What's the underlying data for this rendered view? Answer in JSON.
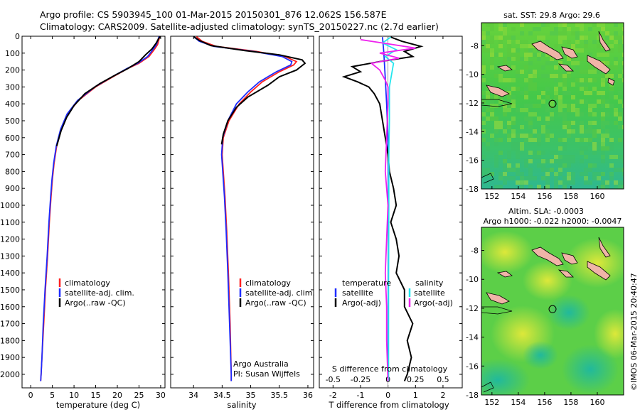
{
  "title": {
    "line1": "Argo profile: CS 5903945_100 01-Mar-2015 20150301_876 12.062S 156.587E",
    "line2": "Climatology: CARS2009. Satellite-adjusted climatology: synTS_20150227.nc (2.7d earlier)"
  },
  "colors": {
    "clim": "#ff2020",
    "sat": "#1e2cff",
    "argo": "#000000",
    "sal_sat": "#22e6ee",
    "sal_argo": "#ee22ee",
    "land": "#f0b4a8"
  },
  "chart_data": [
    {
      "type": "line",
      "name": "temperature-profile",
      "xlabel": "temperature (deg C)",
      "ylabel": "",
      "xlim": [
        -2,
        31
      ],
      "ylim": [
        2080,
        0
      ],
      "xticks": [
        "0",
        "5",
        "10",
        "15",
        "20",
        "25",
        "30"
      ],
      "xtick_values": [
        0,
        5,
        10,
        15,
        20,
        25,
        30
      ],
      "yticks": [
        "0",
        "100",
        "200",
        "300",
        "400",
        "500",
        "600",
        "700",
        "800",
        "900",
        "1000",
        "1100",
        "1200",
        "1300",
        "1400",
        "1500",
        "1600",
        "1700",
        "1800",
        "1900",
        "2000"
      ],
      "ytick_values": [
        0,
        100,
        200,
        300,
        400,
        500,
        600,
        700,
        800,
        900,
        1000,
        1100,
        1200,
        1300,
        1400,
        1500,
        1600,
        1700,
        1800,
        1900,
        2000
      ],
      "legend": [
        "climatology",
        "satellite-adj. clim.",
        "Argo(..raw -QC)"
      ],
      "series": [
        {
          "name": "climatology",
          "color": "clim",
          "points": [
            [
              29.8,
              2
            ],
            [
              29.6,
              20
            ],
            [
              29.3,
              50
            ],
            [
              28.5,
              80
            ],
            [
              27.3,
              120
            ],
            [
              25,
              160
            ],
            [
              22.5,
              190
            ],
            [
              19,
              240
            ],
            [
              15,
              300
            ],
            [
              11,
              380
            ],
            [
              8.5,
              460
            ],
            [
              7,
              550
            ],
            [
              6,
              650
            ],
            [
              5.4,
              750
            ],
            [
              5,
              850
            ],
            [
              4.7,
              950
            ],
            [
              4.3,
              1100
            ],
            [
              3.9,
              1300
            ],
            [
              3.4,
              1500
            ],
            [
              3,
              1700
            ],
            [
              2.6,
              1900
            ],
            [
              2.4,
              2000
            ],
            [
              2.3,
              2040
            ]
          ]
        },
        {
          "name": "satellite-adj. clim.",
          "color": "sat",
          "points": [
            [
              29.6,
              2
            ],
            [
              29.4,
              20
            ],
            [
              29,
              50
            ],
            [
              28.2,
              80
            ],
            [
              27,
              120
            ],
            [
              24.7,
              160
            ],
            [
              22.3,
              190
            ],
            [
              18.8,
              240
            ],
            [
              14.8,
              300
            ],
            [
              10.8,
              380
            ],
            [
              8.4,
              460
            ],
            [
              6.9,
              550
            ],
            [
              5.9,
              650
            ],
            [
              5.3,
              750
            ],
            [
              4.9,
              850
            ],
            [
              4.6,
              950
            ],
            [
              4.2,
              1100
            ],
            [
              3.8,
              1300
            ],
            [
              3.3,
              1500
            ],
            [
              2.9,
              1700
            ],
            [
              2.6,
              1900
            ],
            [
              2.4,
              2000
            ],
            [
              2.3,
              2040
            ]
          ]
        },
        {
          "name": "Argo(..raw -QC)",
          "color": "argo",
          "points": [
            [
              29.9,
              2
            ],
            [
              29.5,
              15
            ],
            [
              29,
              40
            ],
            [
              28,
              75
            ],
            [
              26.5,
              110
            ],
            [
              25,
              150
            ],
            [
              22.5,
              190
            ],
            [
              19.5,
              230
            ],
            [
              16,
              280
            ],
            [
              12.5,
              340
            ],
            [
              10,
              410
            ],
            [
              8.3,
              480
            ],
            [
              7,
              560
            ],
            [
              6,
              650
            ]
          ]
        }
      ]
    },
    {
      "type": "line",
      "name": "salinity-profile",
      "xlabel": "salinity",
      "xlim": [
        33.6,
        36.1
      ],
      "ylim": [
        2080,
        0
      ],
      "xticks": [
        "34",
        "34.5",
        "35",
        "35.5",
        "36"
      ],
      "xtick_values": [
        34,
        34.5,
        35,
        35.5,
        36
      ],
      "legend": [
        "climatology",
        "satellite-adj. clim.",
        "Argo(..raw -QC)"
      ],
      "annotation": [
        "Argo Australia",
        "PI: Susan Wijffels"
      ],
      "series": [
        {
          "name": "climatology",
          "color": "clim",
          "points": [
            [
              34.05,
              2
            ],
            [
              34.15,
              30
            ],
            [
              34.4,
              60
            ],
            [
              35.1,
              90
            ],
            [
              35.6,
              120
            ],
            [
              35.8,
              150
            ],
            [
              35.75,
              170
            ],
            [
              35.5,
              210
            ],
            [
              35.2,
              270
            ],
            [
              35,
              330
            ],
            [
              34.8,
              400
            ],
            [
              34.62,
              500
            ],
            [
              34.52,
              600
            ],
            [
              34.5,
              700
            ],
            [
              34.52,
              800
            ],
            [
              34.55,
              950
            ],
            [
              34.58,
              1150
            ],
            [
              34.61,
              1400
            ],
            [
              34.64,
              1700
            ],
            [
              34.66,
              2000
            ],
            [
              34.66,
              2040
            ]
          ]
        },
        {
          "name": "satellite-adj. clim.",
          "color": "sat",
          "points": [
            [
              34.0,
              2
            ],
            [
              34.1,
              30
            ],
            [
              34.35,
              60
            ],
            [
              35.05,
              90
            ],
            [
              35.55,
              120
            ],
            [
              35.72,
              150
            ],
            [
              35.7,
              170
            ],
            [
              35.45,
              210
            ],
            [
              35.15,
              270
            ],
            [
              34.95,
              330
            ],
            [
              34.75,
              400
            ],
            [
              34.6,
              500
            ],
            [
              34.51,
              600
            ],
            [
              34.49,
              700
            ],
            [
              34.51,
              800
            ],
            [
              34.54,
              950
            ],
            [
              34.57,
              1150
            ],
            [
              34.6,
              1400
            ],
            [
              34.63,
              1700
            ],
            [
              34.66,
              2000
            ],
            [
              34.66,
              2040
            ]
          ]
        },
        {
          "name": "Argo(..raw -QC)",
          "color": "argo",
          "points": [
            [
              34.0,
              2
            ],
            [
              34.1,
              25
            ],
            [
              34.3,
              55
            ],
            [
              34.9,
              85
            ],
            [
              35.5,
              110
            ],
            [
              35.9,
              140
            ],
            [
              35.95,
              160
            ],
            [
              35.8,
              200
            ],
            [
              35.5,
              240
            ],
            [
              35.3,
              290
            ],
            [
              34.95,
              360
            ],
            [
              34.75,
              420
            ],
            [
              34.6,
              500
            ],
            [
              34.52,
              580
            ],
            [
              34.49,
              640
            ]
          ]
        }
      ]
    },
    {
      "type": "line",
      "name": "difference-profile",
      "xlabel": "T difference from climatology",
      "top_xlabel": "S difference from climatology",
      "xlim": [
        -2.5,
        2.7
      ],
      "ylim": [
        2080,
        0
      ],
      "xticks": [
        "-2",
        "-1",
        "0",
        "1",
        "2"
      ],
      "xtick_values": [
        -2,
        -1,
        0,
        1,
        2
      ],
      "top_xticks": [
        "-0.5",
        "-0.25",
        "0",
        "0.25",
        "0.5"
      ],
      "top_xtick_values": [
        -2,
        -1,
        0,
        1,
        2
      ],
      "legend": {
        "temperature_title": "temperature",
        "salinity_title": "salinity",
        "temperature": [
          "satellite",
          "Argo(-adj)"
        ],
        "salinity": [
          "satellite",
          "Argo(-adj)"
        ]
      },
      "series": [
        {
          "name": "T satellite",
          "color": "sat",
          "points": [
            [
              -0.2,
              5
            ],
            [
              -0.15,
              100
            ],
            [
              -0.1,
              250
            ],
            [
              -0.05,
              400
            ],
            [
              0,
              600
            ],
            [
              0.02,
              1000
            ],
            [
              0.01,
              1500
            ],
            [
              0,
              2040
            ]
          ]
        },
        {
          "name": "T Argo(-adj)",
          "color": "argo",
          "points": [
            [
              0.1,
              5
            ],
            [
              0.5,
              30
            ],
            [
              1.2,
              60
            ],
            [
              0.6,
              90
            ],
            [
              0.9,
              120
            ],
            [
              -0.3,
              150
            ],
            [
              -1.3,
              180
            ],
            [
              -1.0,
              210
            ],
            [
              -1.6,
              240
            ],
            [
              -1.1,
              270
            ],
            [
              -0.7,
              300
            ],
            [
              -0.5,
              340
            ],
            [
              -0.3,
              400
            ],
            [
              -0.2,
              500
            ],
            [
              -0.1,
              600
            ],
            [
              0,
              700
            ],
            [
              0.05,
              800
            ],
            [
              0.2,
              900
            ],
            [
              0.3,
              1000
            ],
            [
              0.1,
              1100
            ],
            [
              0.3,
              1200
            ],
            [
              0.4,
              1300
            ],
            [
              0.3,
              1400
            ],
            [
              0.6,
              1500
            ],
            [
              0.6,
              1600
            ],
            [
              0.9,
              1700
            ],
            [
              0.7,
              1800
            ],
            [
              0.85,
              1900
            ],
            [
              0.7,
              2000
            ],
            [
              0.6,
              2040
            ]
          ]
        },
        {
          "name": "S satellite",
          "color": "sal_sat",
          "points": [
            [
              0.1,
              5
            ],
            [
              -0.2,
              40
            ],
            [
              0.3,
              80
            ],
            [
              -0.1,
              120
            ],
            [
              0.2,
              160
            ],
            [
              0.05,
              300
            ],
            [
              0.05,
              500
            ],
            [
              0.03,
              700
            ],
            [
              0.03,
              1000
            ],
            [
              0.02,
              1500
            ],
            [
              0.02,
              2040
            ]
          ]
        },
        {
          "name": "S Argo(-adj)",
          "color": "sal_argo",
          "points": [
            [
              -1.0,
              20
            ],
            [
              -0.2,
              40
            ],
            [
              1.0,
              70
            ],
            [
              -0.3,
              100
            ],
            [
              0.4,
              130
            ],
            [
              -0.6,
              160
            ],
            [
              -0.3,
              200
            ],
            [
              -0.1,
              260
            ],
            [
              0,
              300
            ],
            [
              0,
              400
            ],
            [
              -0.05,
              600
            ],
            [
              -0.1,
              800
            ],
            [
              0,
              1000
            ],
            [
              -0.05,
              1200
            ],
            [
              -0.1,
              1400
            ],
            [
              -0.05,
              1600
            ],
            [
              -0.05,
              1800
            ],
            [
              0,
              2040
            ]
          ]
        }
      ]
    },
    {
      "type": "heatmap",
      "name": "sst-map",
      "title": "sat. SST: 29.8 Argo: 29.6",
      "xticks": [
        "152",
        "154",
        "156",
        "158",
        "160"
      ],
      "xtick_values": [
        152,
        154,
        156,
        158,
        160
      ],
      "yticks": [
        "-8",
        "-10",
        "-12",
        "-14",
        "-16",
        "-18"
      ],
      "ytick_values": [
        -8,
        -10,
        -12,
        -14,
        -16,
        -18
      ],
      "xlim": [
        151.2,
        162
      ],
      "ylim": [
        -18,
        -6.4
      ],
      "marker": [
        156.6,
        -12.06
      ]
    },
    {
      "type": "heatmap",
      "name": "sla-map",
      "title_line1": "Altim. SLA: -0.0003",
      "title_line2": "Argo h1000: -0.022 h2000: -0.0047",
      "xticks": [
        "152",
        "154",
        "156",
        "158",
        "160"
      ],
      "xtick_values": [
        152,
        154,
        156,
        158,
        160
      ],
      "yticks": [
        "-8",
        "-10",
        "-12",
        "-14",
        "-16",
        "-18"
      ],
      "ytick_values": [
        -8,
        -10,
        -12,
        -14,
        -16,
        -18
      ],
      "xlim": [
        151.2,
        162
      ],
      "ylim": [
        -18,
        -6.4
      ],
      "marker": [
        156.6,
        -12.06
      ]
    }
  ],
  "credit": "©IMOS 06-Mar-2015 20:40:47"
}
